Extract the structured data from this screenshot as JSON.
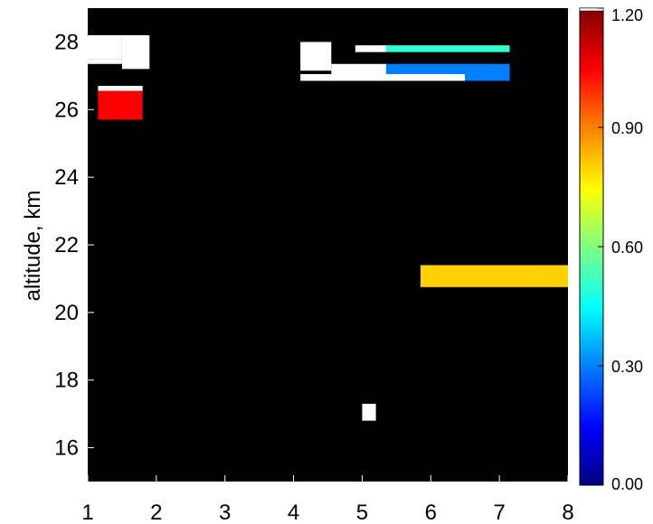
{
  "chart_data": {
    "type": "heatmap",
    "title": "",
    "ylabel": "altitude, km",
    "xlabel": "",
    "xlim": [
      1,
      8
    ],
    "ylim": [
      15,
      29
    ],
    "x_ticks": [
      1,
      2,
      3,
      4,
      5,
      6,
      7,
      8
    ],
    "y_ticks": [
      16,
      18,
      20,
      22,
      24,
      26,
      28
    ],
    "background_color": "#000000",
    "colorbar": {
      "min": 0.0,
      "max": 1.2,
      "over_color": "#ffffff",
      "ticks": [
        "0.00",
        "0.30",
        "0.60",
        "0.90",
        "1.20"
      ],
      "tick_values": [
        0.0,
        0.3,
        0.6,
        0.9,
        1.2
      ]
    },
    "cells": [
      {
        "x0": 1.0,
        "x1": 1.5,
        "y0": 27.5,
        "y1": 28.2,
        "value": "over"
      },
      {
        "x0": 1.0,
        "x1": 1.5,
        "y0": 27.35,
        "y1": 27.5,
        "value": "over"
      },
      {
        "x0": 1.5,
        "x1": 1.9,
        "y0": 27.2,
        "y1": 28.2,
        "value": "over"
      },
      {
        "x0": 1.15,
        "x1": 1.8,
        "y0": 26.55,
        "y1": 26.7,
        "value": "over"
      },
      {
        "x0": 1.15,
        "x1": 1.8,
        "y0": 25.7,
        "y1": 26.55,
        "value": 1.05
      },
      {
        "x0": 4.1,
        "x1": 4.55,
        "y0": 27.15,
        "y1": 28.0,
        "value": "over"
      },
      {
        "x0": 4.55,
        "x1": 5.35,
        "y0": 27.05,
        "y1": 27.35,
        "value": "over"
      },
      {
        "x0": 4.1,
        "x1": 6.5,
        "y0": 26.85,
        "y1": 27.05,
        "value": "over"
      },
      {
        "x0": 4.9,
        "x1": 5.35,
        "y0": 27.7,
        "y1": 27.9,
        "value": "over"
      },
      {
        "x0": 5.35,
        "x1": 7.15,
        "y0": 27.7,
        "y1": 27.9,
        "value": 0.5
      },
      {
        "x0": 5.35,
        "x1": 7.15,
        "y0": 27.05,
        "y1": 27.35,
        "value": 0.3
      },
      {
        "x0": 6.5,
        "x1": 7.15,
        "y0": 26.85,
        "y1": 27.05,
        "value": 0.3
      },
      {
        "x0": 5.85,
        "x1": 8.0,
        "y0": 20.75,
        "y1": 21.4,
        "value": 0.8
      },
      {
        "x0": 5.0,
        "x1": 5.2,
        "y0": 16.8,
        "y1": 17.3,
        "value": "over"
      }
    ]
  }
}
